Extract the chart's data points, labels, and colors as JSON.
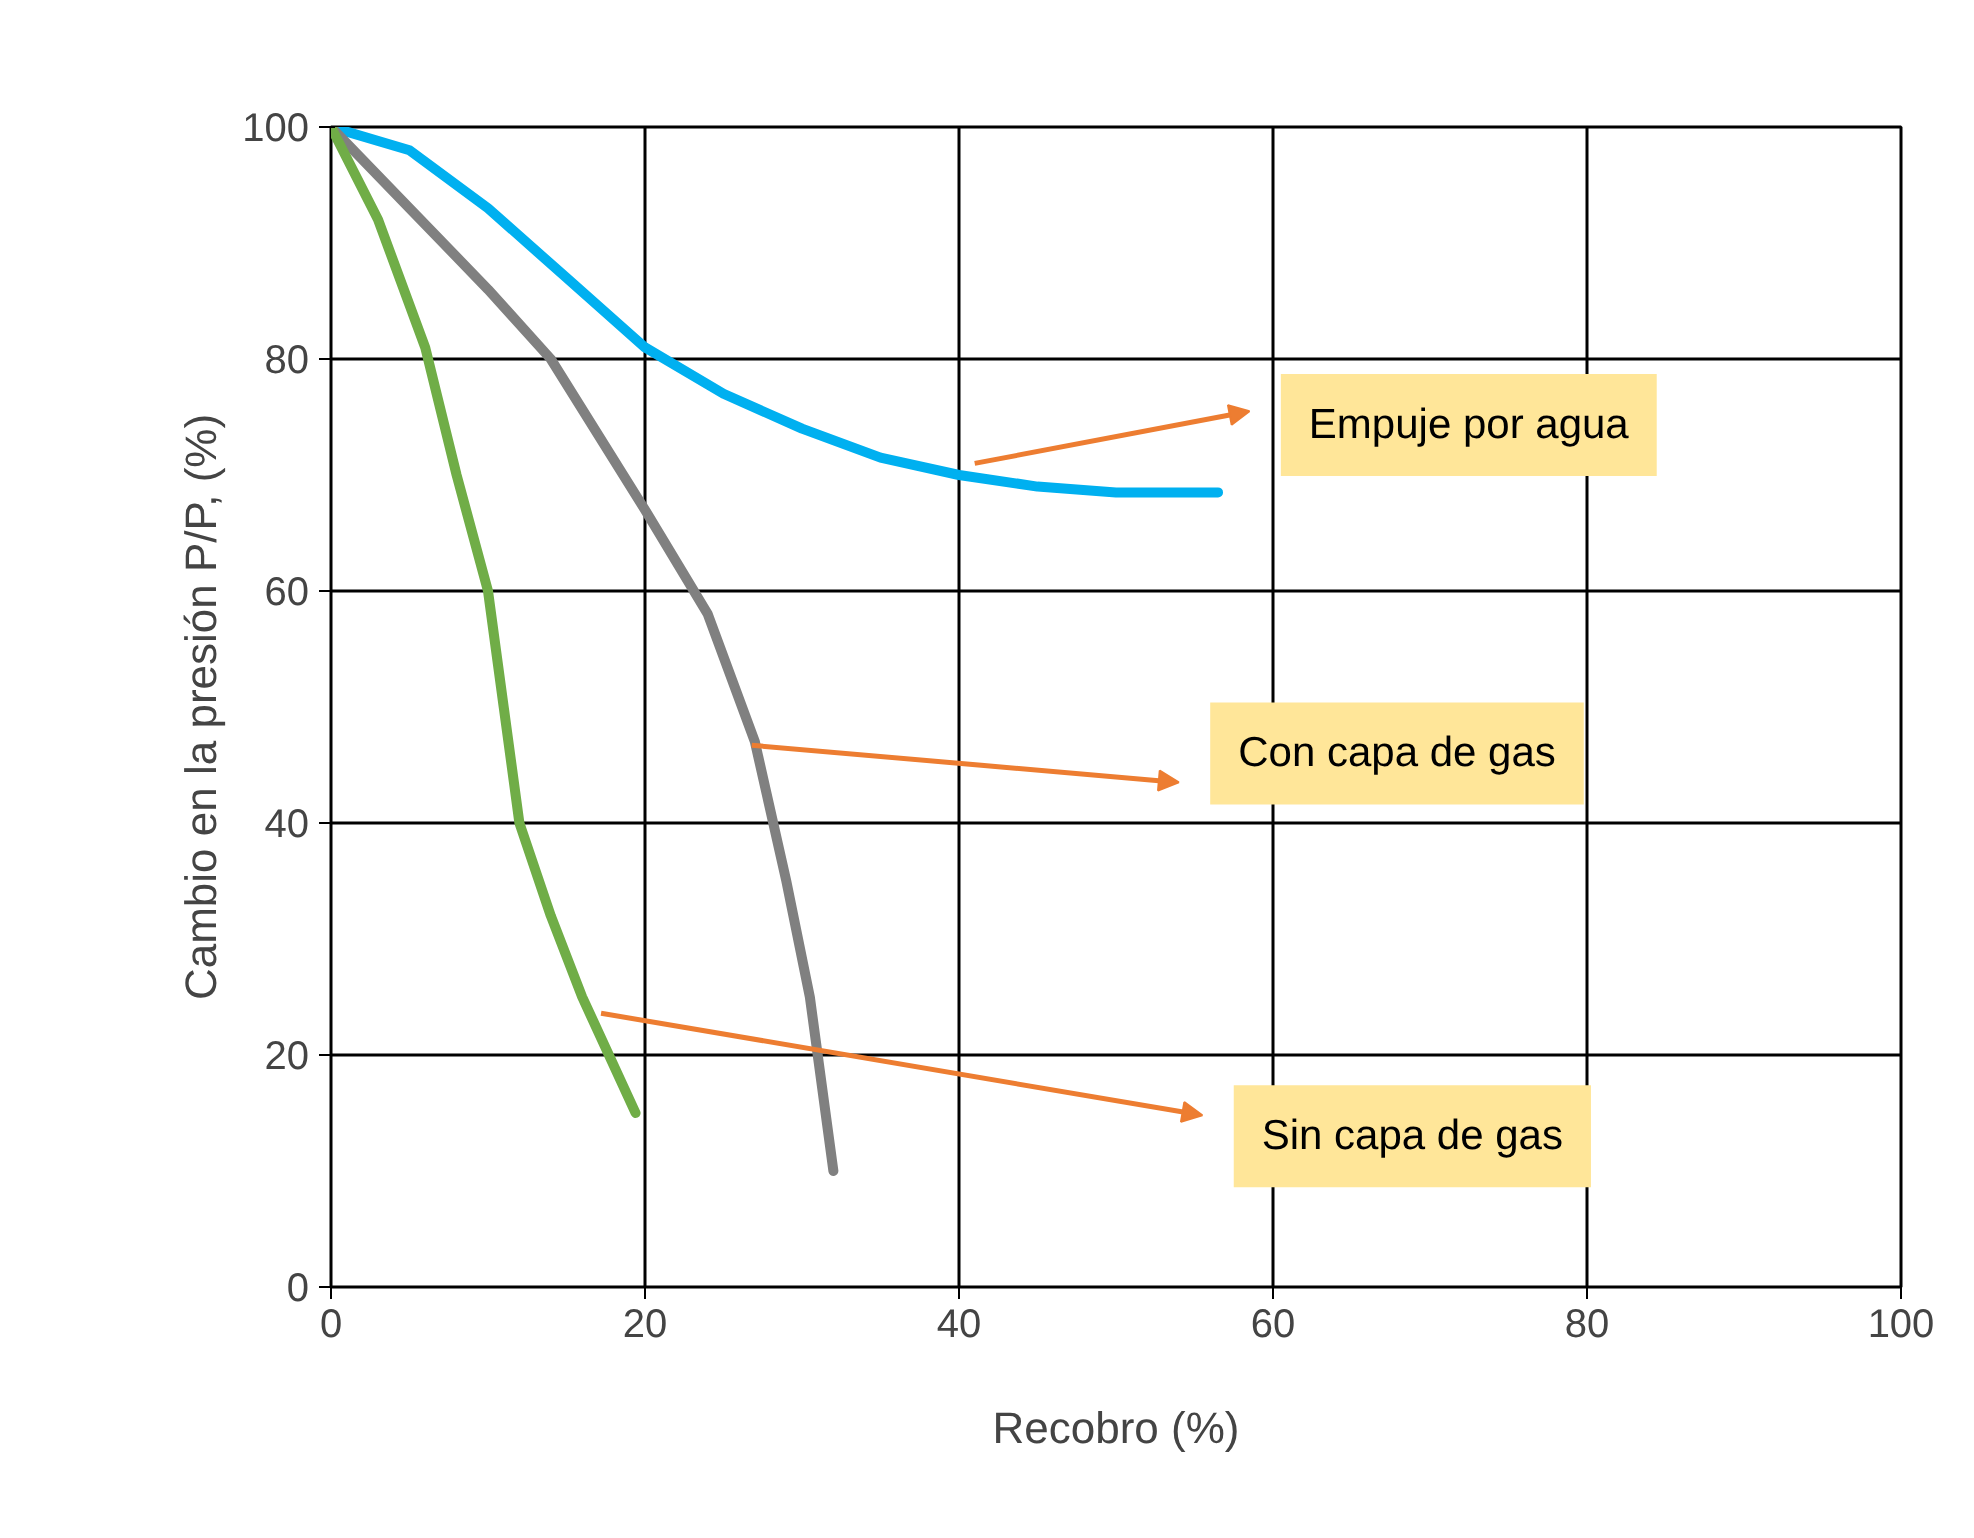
{
  "chart_data": {
    "type": "line",
    "xlabel": "Recobro (%)",
    "ylabel": "Cambio en la presión P/P, (%)",
    "annotations": [
      "Empuje por agua",
      "Con capa de gas",
      "Sin capa de gas"
    ],
    "xlim": [
      0,
      100
    ],
    "ylim": [
      0,
      100
    ],
    "xticks": [
      0,
      20,
      40,
      60,
      80,
      100
    ],
    "yticks": [
      0,
      20,
      40,
      60,
      80,
      100
    ],
    "grid": true,
    "line_style": "solid",
    "series": [
      {
        "color": "#00b0f0",
        "x": [
          0,
          5,
          10,
          15,
          20,
          25,
          30,
          35,
          40,
          45,
          50,
          56.5
        ],
        "values": [
          100,
          98,
          93,
          87,
          81,
          77,
          74,
          71.5,
          70,
          69,
          68.5,
          68.5
        ]
      },
      {
        "color": "#808080",
        "x": [
          0,
          5,
          10,
          14,
          20,
          24,
          27,
          29,
          30.5,
          32
        ],
        "values": [
          100,
          93,
          86,
          80,
          67,
          58,
          47,
          35,
          25,
          10
        ]
      },
      {
        "color": "#70ad47",
        "x": [
          0,
          3,
          6,
          8,
          10,
          11,
          12,
          14,
          16,
          19.4
        ],
        "values": [
          100,
          92,
          81,
          70,
          60,
          50,
          40,
          32,
          25,
          15
        ]
      }
    ]
  }
}
